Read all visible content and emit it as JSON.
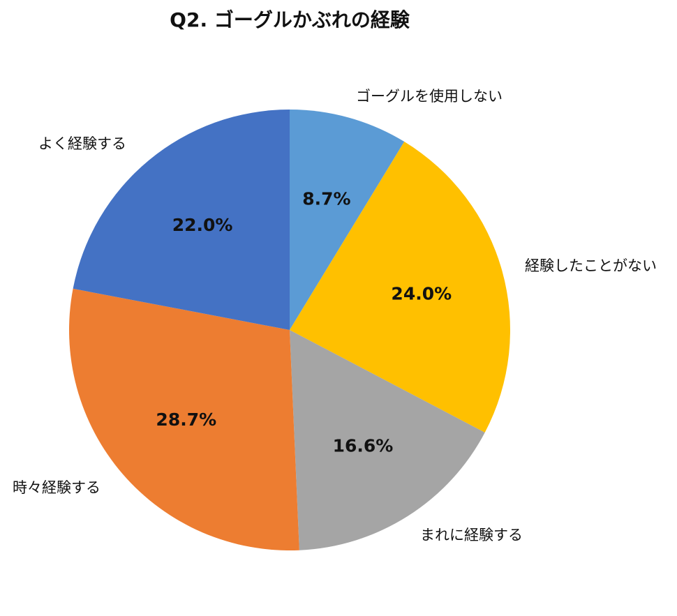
{
  "chart_data": {
    "type": "pie",
    "title": "Q2. ゴーグルかぶれの経験",
    "start": "12 o'clock",
    "direction": "clockwise",
    "slices": [
      {
        "label": "ゴーグルを使用しない",
        "value": 8.7,
        "display": "8.7%",
        "color": "#5B9BD5"
      },
      {
        "label": "経験したことがない",
        "value": 24.0,
        "display": "24.0%",
        "color": "#FFC000"
      },
      {
        "label": "まれに経験する",
        "value": 16.6,
        "display": "16.6%",
        "color": "#A5A5A5"
      },
      {
        "label": "時々経験する",
        "value": 28.7,
        "display": "28.7%",
        "color": "#ED7D31"
      },
      {
        "label": "よく経験する",
        "value": 22.0,
        "display": "22.0%",
        "color": "#4472C4"
      }
    ]
  }
}
